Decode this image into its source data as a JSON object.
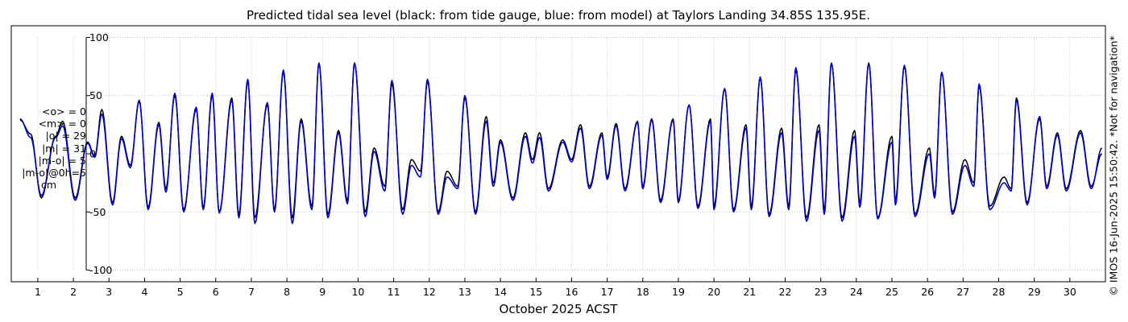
{
  "chart_data": {
    "type": "line",
    "title": "Predicted tidal sea level (black: from tide gauge, blue: from model) at Taylors Landing 34.85S 135.95E.",
    "xlabel": "October 2025 ACST",
    "ylabel": "",
    "xlim": [
      0.3,
      31.0
    ],
    "ylim": [
      -110,
      110
    ],
    "yticks": [
      -100,
      -50,
      0,
      50,
      100
    ],
    "xticks": [
      1,
      2,
      3,
      4,
      5,
      6,
      7,
      8,
      9,
      10,
      11,
      12,
      13,
      14,
      15,
      16,
      17,
      18,
      19,
      20,
      21,
      22,
      23,
      24,
      25,
      26,
      27,
      28,
      29,
      30
    ],
    "grid": true,
    "series": [
      {
        "name": "black: from tide gauge",
        "color": "#000000",
        "peaks": [
          [
            0.5,
            29
          ],
          [
            0.8,
            17
          ],
          [
            1.1,
            -38
          ],
          [
            1.5,
            15
          ],
          [
            1.7,
            28
          ],
          [
            2.05,
            -38
          ],
          [
            2.4,
            10
          ],
          [
            2.6,
            -2
          ],
          [
            2.8,
            38
          ],
          [
            3.1,
            -42
          ],
          [
            3.35,
            15
          ],
          [
            3.6,
            -10
          ],
          [
            3.85,
            45
          ],
          [
            4.1,
            -46
          ],
          [
            4.4,
            27
          ],
          [
            4.6,
            -30
          ],
          [
            4.85,
            50
          ],
          [
            5.1,
            -48
          ],
          [
            5.45,
            38
          ],
          [
            5.65,
            -46
          ],
          [
            5.9,
            50
          ],
          [
            6.1,
            -50
          ],
          [
            6.45,
            48
          ],
          [
            6.65,
            -52
          ],
          [
            6.9,
            62
          ],
          [
            7.1,
            -55
          ],
          [
            7.45,
            42
          ],
          [
            7.65,
            -48
          ],
          [
            7.9,
            70
          ],
          [
            8.15,
            -55
          ],
          [
            8.4,
            30
          ],
          [
            8.7,
            -45
          ],
          [
            8.9,
            78
          ],
          [
            9.15,
            -52
          ],
          [
            9.45,
            20
          ],
          [
            9.7,
            -40
          ],
          [
            9.9,
            78
          ],
          [
            10.2,
            -50
          ],
          [
            10.45,
            5
          ],
          [
            10.75,
            -28
          ],
          [
            10.95,
            60
          ],
          [
            11.25,
            -48
          ],
          [
            11.5,
            -5
          ],
          [
            11.75,
            -15
          ],
          [
            11.95,
            62
          ],
          [
            12.25,
            -50
          ],
          [
            12.5,
            -15
          ],
          [
            12.8,
            -28
          ],
          [
            13.0,
            48
          ],
          [
            13.3,
            -50
          ],
          [
            13.6,
            32
          ],
          [
            13.8,
            -25
          ],
          [
            14.0,
            12
          ],
          [
            14.35,
            -38
          ],
          [
            14.7,
            18
          ],
          [
            14.9,
            -5
          ],
          [
            15.1,
            18
          ],
          [
            15.35,
            -30
          ],
          [
            15.75,
            12
          ],
          [
            16.0,
            -5
          ],
          [
            16.25,
            25
          ],
          [
            16.5,
            -28
          ],
          [
            16.85,
            18
          ],
          [
            17.0,
            -20
          ],
          [
            17.25,
            26
          ],
          [
            17.5,
            -30
          ],
          [
            17.85,
            28
          ],
          [
            18.0,
            -28
          ],
          [
            18.25,
            30
          ],
          [
            18.5,
            -40
          ],
          [
            18.85,
            30
          ],
          [
            19.0,
            -40
          ],
          [
            19.3,
            42
          ],
          [
            19.55,
            -45
          ],
          [
            19.9,
            30
          ],
          [
            20.0,
            -45
          ],
          [
            20.3,
            56
          ],
          [
            20.55,
            -48
          ],
          [
            20.9,
            25
          ],
          [
            21.05,
            -45
          ],
          [
            21.3,
            65
          ],
          [
            21.55,
            -52
          ],
          [
            21.9,
            22
          ],
          [
            22.1,
            -45
          ],
          [
            22.3,
            72
          ],
          [
            22.6,
            -55
          ],
          [
            22.95,
            25
          ],
          [
            23.1,
            -48
          ],
          [
            23.3,
            78
          ],
          [
            23.6,
            -55
          ],
          [
            23.95,
            20
          ],
          [
            24.1,
            -42
          ],
          [
            24.35,
            78
          ],
          [
            24.6,
            -55
          ],
          [
            25.0,
            15
          ],
          [
            25.1,
            -40
          ],
          [
            25.35,
            75
          ],
          [
            25.65,
            -52
          ],
          [
            26.05,
            5
          ],
          [
            26.2,
            -35
          ],
          [
            26.4,
            70
          ],
          [
            26.7,
            -50
          ],
          [
            27.05,
            -5
          ],
          [
            27.3,
            -25
          ],
          [
            27.45,
            58
          ],
          [
            27.75,
            -45
          ],
          [
            28.15,
            -20
          ],
          [
            28.35,
            -30
          ],
          [
            28.5,
            48
          ],
          [
            28.8,
            -42
          ],
          [
            29.15,
            30
          ],
          [
            29.35,
            -28
          ],
          [
            29.65,
            18
          ],
          [
            29.9,
            -30
          ],
          [
            30.3,
            20
          ],
          [
            30.6,
            -28
          ],
          [
            30.9,
            0
          ]
        ]
      },
      {
        "name": "blue: from model",
        "color": "#0000cc",
        "peaks": [
          [
            0.5,
            30
          ],
          [
            0.8,
            14
          ],
          [
            1.1,
            -36
          ],
          [
            1.5,
            14
          ],
          [
            1.7,
            24
          ],
          [
            2.05,
            -40
          ],
          [
            2.4,
            9
          ],
          [
            2.6,
            -3
          ],
          [
            2.8,
            34
          ],
          [
            3.1,
            -44
          ],
          [
            3.35,
            13
          ],
          [
            3.6,
            -12
          ],
          [
            3.85,
            46
          ],
          [
            4.1,
            -48
          ],
          [
            4.4,
            25
          ],
          [
            4.6,
            -33
          ],
          [
            4.85,
            52
          ],
          [
            5.1,
            -50
          ],
          [
            5.45,
            40
          ],
          [
            5.65,
            -48
          ],
          [
            5.9,
            52
          ],
          [
            6.1,
            -51
          ],
          [
            6.45,
            46
          ],
          [
            6.65,
            -55
          ],
          [
            6.9,
            64
          ],
          [
            7.1,
            -60
          ],
          [
            7.45,
            44
          ],
          [
            7.65,
            -50
          ],
          [
            7.9,
            72
          ],
          [
            8.15,
            -60
          ],
          [
            8.4,
            28
          ],
          [
            8.7,
            -48
          ],
          [
            8.9,
            78
          ],
          [
            9.15,
            -55
          ],
          [
            9.45,
            18
          ],
          [
            9.7,
            -43
          ],
          [
            9.9,
            78
          ],
          [
            10.2,
            -54
          ],
          [
            10.45,
            2
          ],
          [
            10.75,
            -32
          ],
          [
            10.95,
            63
          ],
          [
            11.25,
            -52
          ],
          [
            11.5,
            -10
          ],
          [
            11.75,
            -20
          ],
          [
            11.95,
            64
          ],
          [
            12.25,
            -52
          ],
          [
            12.5,
            -20
          ],
          [
            12.8,
            -30
          ],
          [
            13.0,
            50
          ],
          [
            13.3,
            -52
          ],
          [
            13.6,
            28
          ],
          [
            13.8,
            -28
          ],
          [
            14.0,
            10
          ],
          [
            14.35,
            -40
          ],
          [
            14.7,
            15
          ],
          [
            14.9,
            -8
          ],
          [
            15.1,
            14
          ],
          [
            15.35,
            -32
          ],
          [
            15.75,
            10
          ],
          [
            16.0,
            -7
          ],
          [
            16.25,
            22
          ],
          [
            16.5,
            -30
          ],
          [
            16.85,
            16
          ],
          [
            17.0,
            -22
          ],
          [
            17.25,
            24
          ],
          [
            17.5,
            -32
          ],
          [
            17.85,
            27
          ],
          [
            18.0,
            -30
          ],
          [
            18.25,
            29
          ],
          [
            18.5,
            -42
          ],
          [
            18.85,
            29
          ],
          [
            19.0,
            -42
          ],
          [
            19.3,
            42
          ],
          [
            19.55,
            -47
          ],
          [
            19.9,
            28
          ],
          [
            20.0,
            -48
          ],
          [
            20.3,
            56
          ],
          [
            20.55,
            -50
          ],
          [
            20.9,
            22
          ],
          [
            21.05,
            -48
          ],
          [
            21.3,
            66
          ],
          [
            21.55,
            -54
          ],
          [
            21.9,
            18
          ],
          [
            22.1,
            -48
          ],
          [
            22.3,
            74
          ],
          [
            22.6,
            -58
          ],
          [
            22.95,
            20
          ],
          [
            23.1,
            -52
          ],
          [
            23.3,
            78
          ],
          [
            23.6,
            -58
          ],
          [
            23.95,
            15
          ],
          [
            24.1,
            -46
          ],
          [
            24.35,
            78
          ],
          [
            24.6,
            -56
          ],
          [
            25.0,
            10
          ],
          [
            25.1,
            -44
          ],
          [
            25.35,
            76
          ],
          [
            25.65,
            -54
          ],
          [
            26.05,
            0
          ],
          [
            26.2,
            -38
          ],
          [
            26.4,
            70
          ],
          [
            26.7,
            -52
          ],
          [
            27.05,
            -10
          ],
          [
            27.3,
            -28
          ],
          [
            27.45,
            60
          ],
          [
            27.75,
            -48
          ],
          [
            28.15,
            -25
          ],
          [
            28.35,
            -32
          ],
          [
            28.5,
            46
          ],
          [
            28.8,
            -44
          ],
          [
            29.15,
            32
          ],
          [
            29.35,
            -30
          ],
          [
            29.65,
            16
          ],
          [
            29.9,
            -32
          ],
          [
            30.3,
            18
          ],
          [
            30.6,
            -30
          ],
          [
            30.9,
            5
          ]
        ]
      }
    ],
    "stats_lines": [
      "<o> = 0",
      "<m> = 0",
      "|o| = 29",
      "|m| = 31",
      "|m-o| = 5",
      "|m-o|@0h=5",
      "cm"
    ],
    "copyright": "© IMOS 16-Jun-2025 15:50:42. *Not for navigation*"
  }
}
